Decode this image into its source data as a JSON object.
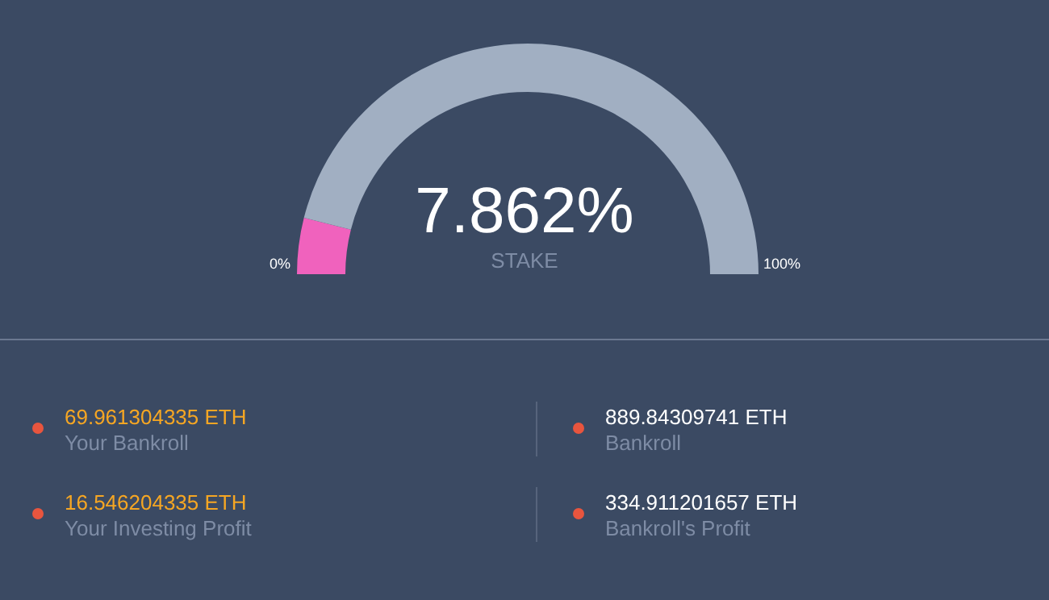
{
  "chart_data": [
    {
      "type": "donut",
      "title": "7.862%",
      "subtitle": "STAKE",
      "categories": [
        null,
        null
      ],
      "values": [
        7.862,
        92.138
      ],
      "colors": [
        "#f062bd",
        "#a1afc2"
      ],
      "annotations": [
        "0%",
        "100%"
      ]
    },
    {
      "type": "other",
      "annotations": [
        "69.961304335 ETH",
        "Your Bankroll",
        "889.84309741 ETH",
        "Bankroll",
        "16.546204335 ETH",
        "Your Investing Profit",
        "334.911201657 ETH",
        "Bankroll's Profit"
      ]
    }
  ]
}
